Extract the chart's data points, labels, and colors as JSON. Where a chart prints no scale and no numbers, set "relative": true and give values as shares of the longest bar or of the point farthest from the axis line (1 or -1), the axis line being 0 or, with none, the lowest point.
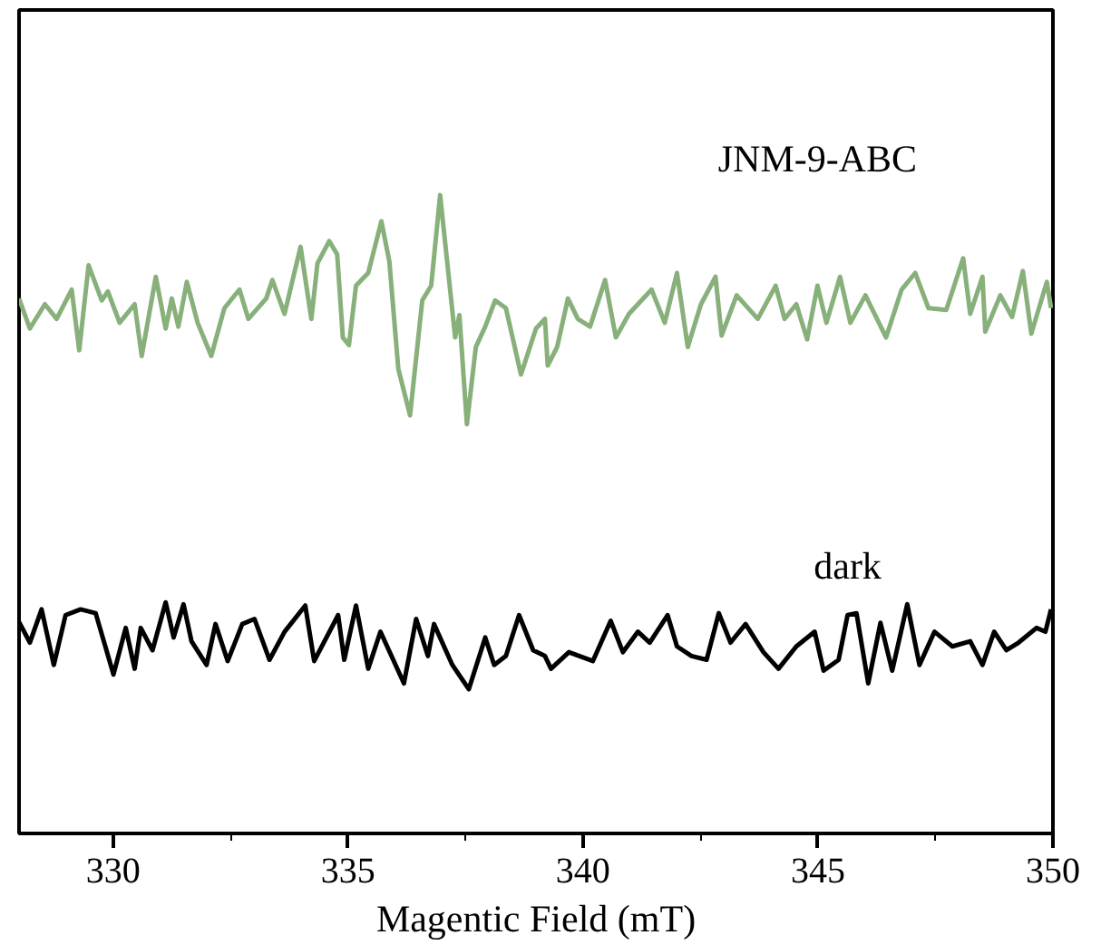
{
  "chart_data": {
    "type": "line",
    "relative": true,
    "xlabel": "Magentic Field (mT)",
    "xlim": [
      328,
      350
    ],
    "xticks": [
      330,
      335,
      340,
      345,
      350
    ],
    "grid": false,
    "tick_labels": "x",
    "series": [
      {
        "name": "JNM-9-ABC",
        "color": "#88b07b",
        "x": [
          328.0,
          328.23,
          328.55,
          328.8,
          329.12,
          329.28,
          329.48,
          329.76,
          329.89,
          330.14,
          330.46,
          330.61,
          330.91,
          331.12,
          331.25,
          331.39,
          331.57,
          331.8,
          332.09,
          332.37,
          332.69,
          332.88,
          333.26,
          333.39,
          333.65,
          333.99,
          334.22,
          334.35,
          334.6,
          334.77,
          334.89,
          335.02,
          335.17,
          335.43,
          335.71,
          335.88,
          336.07,
          336.32,
          336.58,
          336.77,
          336.96,
          337.28,
          337.37,
          337.53,
          337.72,
          337.92,
          338.13,
          338.36,
          338.68,
          339.0,
          339.19,
          339.25,
          339.45,
          339.68,
          339.89,
          340.15,
          340.47,
          340.7,
          340.98,
          341.46,
          341.74,
          342.0,
          342.23,
          342.51,
          342.82,
          342.95,
          343.27,
          343.72,
          344.1,
          344.29,
          344.54,
          344.77,
          344.99,
          345.18,
          345.47,
          345.69,
          346.01,
          346.45,
          346.78,
          347.07,
          347.35,
          347.73,
          348.09,
          348.24,
          348.5,
          348.56,
          348.88,
          349.13,
          349.36,
          349.54,
          349.87,
          349.96
        ],
        "values": [
          0.838,
          0.791,
          0.829,
          0.806,
          0.852,
          0.757,
          0.89,
          0.835,
          0.849,
          0.8,
          0.829,
          0.748,
          0.872,
          0.791,
          0.838,
          0.794,
          0.864,
          0.8,
          0.748,
          0.823,
          0.852,
          0.806,
          0.838,
          0.867,
          0.814,
          0.919,
          0.806,
          0.893,
          0.928,
          0.907,
          0.777,
          0.765,
          0.858,
          0.878,
          0.959,
          0.896,
          0.728,
          0.655,
          0.835,
          0.858,
          1.0,
          0.777,
          0.812,
          0.641,
          0.762,
          0.794,
          0.835,
          0.823,
          0.719,
          0.791,
          0.806,
          0.733,
          0.762,
          0.838,
          0.806,
          0.794,
          0.867,
          0.777,
          0.814,
          0.852,
          0.8,
          0.878,
          0.762,
          0.829,
          0.872,
          0.78,
          0.843,
          0.806,
          0.858,
          0.806,
          0.829,
          0.774,
          0.858,
          0.8,
          0.872,
          0.8,
          0.843,
          0.777,
          0.852,
          0.878,
          0.823,
          0.82,
          0.901,
          0.814,
          0.872,
          0.786,
          0.843,
          0.809,
          0.881,
          0.783,
          0.864,
          0.823
        ]
      },
      {
        "name": "dark",
        "color": "#000000",
        "x": [
          328.0,
          328.23,
          328.48,
          328.74,
          328.99,
          329.31,
          329.63,
          330.01,
          330.27,
          330.46,
          330.59,
          330.84,
          331.12,
          331.29,
          331.5,
          331.67,
          331.99,
          332.18,
          332.44,
          332.75,
          333.01,
          333.33,
          333.65,
          334.09,
          334.28,
          334.79,
          334.92,
          335.17,
          335.43,
          335.69,
          336.19,
          336.45,
          336.7,
          336.83,
          337.22,
          337.57,
          337.92,
          338.11,
          338.36,
          338.64,
          338.94,
          339.19,
          339.32,
          339.7,
          340.21,
          340.59,
          340.85,
          341.17,
          341.42,
          341.8,
          342.0,
          342.31,
          342.63,
          342.89,
          343.14,
          343.46,
          343.84,
          344.16,
          344.54,
          344.93,
          345.12,
          345.44,
          345.63,
          345.82,
          346.07,
          346.33,
          346.58,
          346.9,
          347.16,
          347.48,
          347.86,
          348.24,
          348.5,
          348.75,
          349.01,
          349.27,
          349.65,
          349.84,
          349.96
        ],
        "values": [
          0.331,
          0.299,
          0.351,
          0.264,
          0.342,
          0.351,
          0.345,
          0.249,
          0.322,
          0.258,
          0.322,
          0.287,
          0.362,
          0.307,
          0.359,
          0.301,
          0.264,
          0.328,
          0.27,
          0.328,
          0.336,
          0.272,
          0.316,
          0.357,
          0.27,
          0.342,
          0.272,
          0.357,
          0.258,
          0.316,
          0.235,
          0.336,
          0.278,
          0.328,
          0.264,
          0.226,
          0.307,
          0.264,
          0.278,
          0.342,
          0.287,
          0.278,
          0.258,
          0.284,
          0.27,
          0.333,
          0.284,
          0.316,
          0.299,
          0.342,
          0.293,
          0.278,
          0.272,
          0.345,
          0.299,
          0.328,
          0.284,
          0.258,
          0.293,
          0.316,
          0.255,
          0.272,
          0.342,
          0.345,
          0.235,
          0.33,
          0.255,
          0.359,
          0.264,
          0.316,
          0.293,
          0.301,
          0.264,
          0.316,
          0.287,
          0.299,
          0.322,
          0.316,
          0.351
        ]
      }
    ]
  }
}
